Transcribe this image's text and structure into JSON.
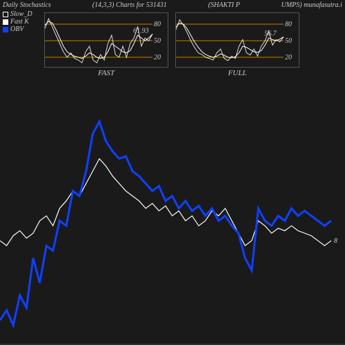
{
  "header": {
    "left": "Daily Stochastics",
    "mid_left": "(14,3,3) Charts for 531431",
    "mid_right": "(SHAKTI P",
    "right": "UMPS) munafasutra.i"
  },
  "legend": {
    "slow_d": {
      "label": "Slow_D",
      "color": "#ffffff",
      "style": "outline"
    },
    "fast_k": {
      "label": "Fast K",
      "color": "#ffffff",
      "style": "solid"
    },
    "obv": {
      "label": "OBV",
      "color": "#1040ff",
      "style": "solid"
    }
  },
  "colors": {
    "bg": "#1a1a1a",
    "panel_border": "#555555",
    "grid_line": "#c08000",
    "text": "#cccccc",
    "line_white": "#ffffff",
    "line_blue": "#1040ff"
  },
  "mini_fast": {
    "title": "FAST",
    "ylim": [
      0,
      100
    ],
    "yticks": [
      20,
      50,
      80
    ],
    "end_value": 61.93,
    "series_d": [
      78,
      85,
      82,
      70,
      55,
      40,
      30,
      25,
      22,
      20,
      18,
      22,
      28,
      25,
      20,
      18,
      20,
      30,
      45,
      40,
      35,
      30,
      28,
      32,
      45,
      60,
      55,
      50,
      55,
      62
    ],
    "series_k": [
      72,
      90,
      75,
      60,
      45,
      30,
      20,
      28,
      18,
      15,
      10,
      30,
      40,
      15,
      10,
      25,
      15,
      45,
      60,
      25,
      20,
      40,
      20,
      45,
      55,
      75,
      40,
      55,
      50,
      62
    ]
  },
  "mini_full": {
    "title": "FULL",
    "ylim": [
      0,
      100
    ],
    "yticks": [
      20,
      50,
      80
    ],
    "end_value": 56.7,
    "series_d": [
      75,
      82,
      80,
      72,
      60,
      48,
      38,
      30,
      25,
      22,
      20,
      22,
      26,
      24,
      20,
      19,
      21,
      28,
      40,
      38,
      34,
      30,
      29,
      32,
      42,
      55,
      52,
      50,
      53,
      57
    ],
    "series_k": [
      70,
      88,
      78,
      65,
      50,
      38,
      28,
      25,
      20,
      18,
      15,
      28,
      35,
      18,
      14,
      22,
      18,
      40,
      52,
      28,
      24,
      35,
      22,
      40,
      50,
      68,
      42,
      52,
      48,
      57
    ]
  },
  "main": {
    "ylim": [
      0,
      100
    ],
    "right_label": "8",
    "series_white": [
      42,
      40,
      44,
      46,
      43,
      45,
      50,
      52,
      48,
      55,
      58,
      62,
      60,
      65,
      70,
      75,
      72,
      68,
      65,
      62,
      60,
      58,
      55,
      57,
      54,
      56,
      52,
      54,
      50,
      52,
      48,
      50,
      54,
      52,
      55,
      50,
      45,
      40,
      42,
      50,
      48,
      45,
      47,
      46,
      48,
      46,
      45,
      44,
      42,
      40,
      42
    ],
    "series_blue": [
      10,
      14,
      8,
      20,
      15,
      35,
      25,
      40,
      38,
      50,
      48,
      62,
      60,
      70,
      85,
      90,
      82,
      78,
      75,
      76,
      70,
      68,
      65,
      62,
      64,
      58,
      60,
      55,
      58,
      54,
      56,
      52,
      55,
      50,
      52,
      48,
      45,
      35,
      30,
      55,
      50,
      48,
      52,
      50,
      55,
      52,
      54,
      52,
      50,
      48,
      50
    ]
  }
}
